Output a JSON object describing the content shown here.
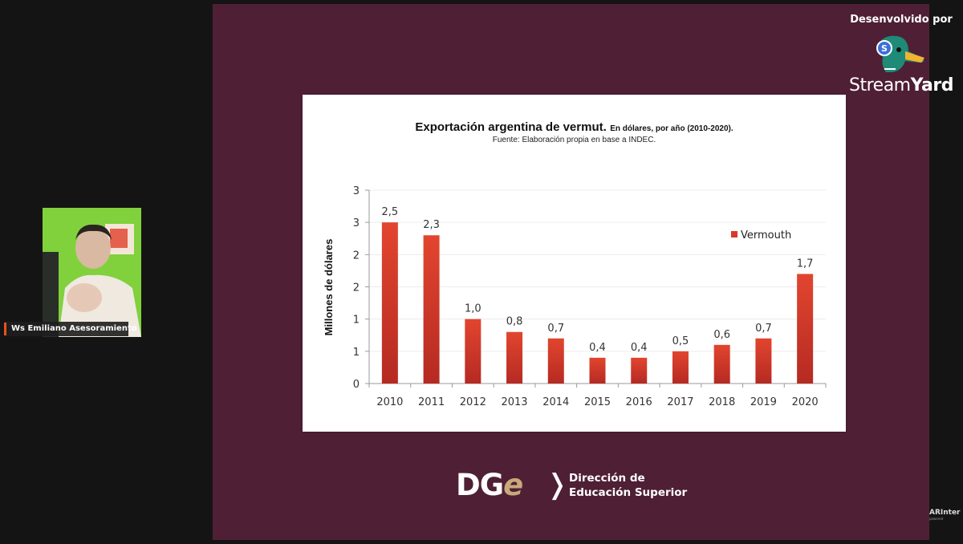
{
  "stream": {
    "participant_name": "Ws Emiliano Asesoramiento",
    "branding_caption": "Desenvolvido por",
    "branding_name_light": "Stream",
    "branding_name_bold": "Yard",
    "watermark": "ARInter",
    "watermark_sub": "powered",
    "colors": {
      "stage_bg": "#4f1f35",
      "page_bg": "#141414",
      "name_accent": "#e8521c"
    }
  },
  "slide": {
    "logo_letters": "DG",
    "logo_accent_letter": "e",
    "logo_line1": "Dirección de",
    "logo_line2": "Educación Superior",
    "accent_color": "#c8a97a"
  },
  "chart_data": {
    "type": "bar",
    "title": "Exportación argentina de vermut.",
    "subtitle": "En dólares, por año (2010-2020).",
    "source": "Fuente: Elaboración propia en base a INDEC.",
    "xlabel": "",
    "ylabel": "Millones de dólares",
    "ylim": [
      0,
      3
    ],
    "y_ticks": [
      0,
      0.5,
      1,
      1.5,
      2,
      2.5,
      3
    ],
    "y_tick_labels": [
      "0",
      "1",
      "1",
      "2",
      "2",
      "3",
      "3"
    ],
    "grid": true,
    "legend_position": "top-right",
    "categories": [
      "2010",
      "2011",
      "2012",
      "2013",
      "2014",
      "2015",
      "2016",
      "2017",
      "2018",
      "2019",
      "2020"
    ],
    "series": [
      {
        "name": "Vermouth",
        "color": "#d63a2a",
        "values": [
          2.5,
          2.3,
          1.0,
          0.8,
          0.7,
          0.4,
          0.4,
          0.5,
          0.6,
          0.7,
          1.7
        ],
        "labels": [
          "2,5",
          "2,3",
          "1,0",
          "0,8",
          "0,7",
          "0,4",
          "0,4",
          "0,5",
          "0,6",
          "0,7",
          "1,7"
        ]
      }
    ]
  }
}
